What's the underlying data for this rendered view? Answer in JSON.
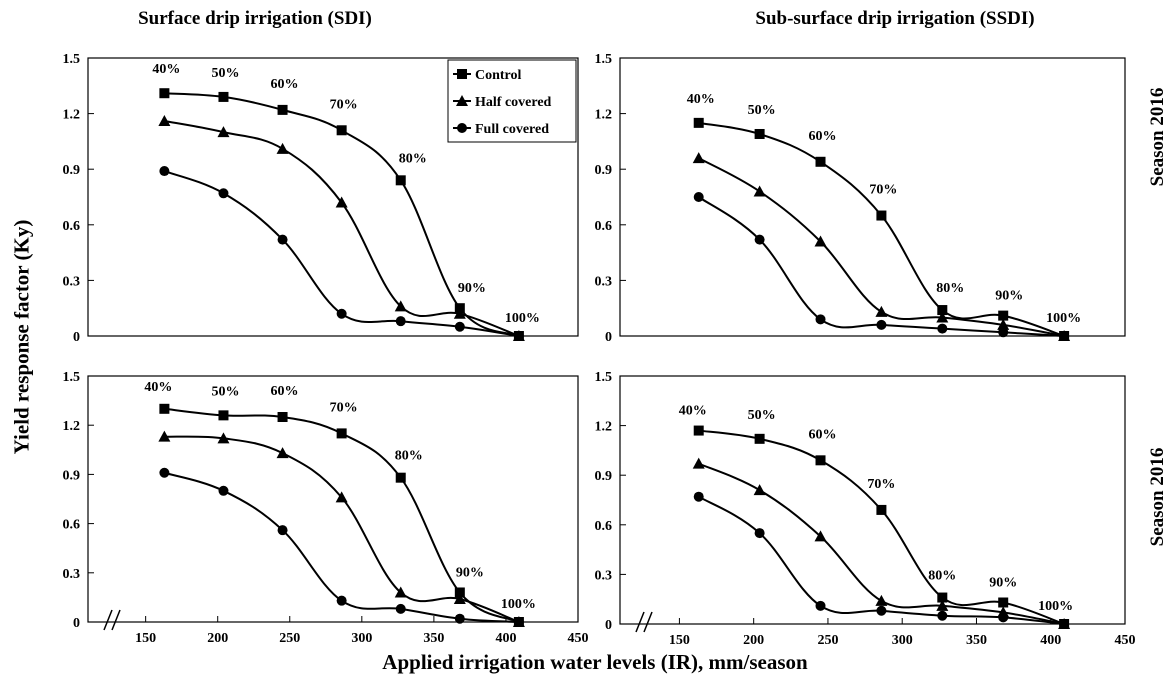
{
  "titles": {
    "sdi": "Surface drip irrigation (SDI)",
    "ssdi": "Sub-surface drip irrigation (SSDI)"
  },
  "ylabel": "Yield response factor (Ky)",
  "xlabel": "Applied irrigation water levels (IR), mm/season",
  "season_labels": [
    "Season 2016",
    "Season 2016"
  ],
  "legend": [
    "Control",
    "Half covered",
    "Full covered"
  ],
  "chart_data": [
    {
      "type": "line",
      "panel": "SDI top",
      "ylim": [
        0,
        1.5
      ],
      "yticks": [
        "1.5",
        "1.2",
        "0.9",
        "0.6",
        "0.3",
        "0"
      ],
      "x": [
        163,
        204,
        245,
        286,
        327,
        368,
        409
      ],
      "point_labels": [
        "40%",
        "50%",
        "60%",
        "70%",
        "80%",
        "90%",
        "100%"
      ],
      "series": [
        {
          "name": "Control",
          "marker": "square",
          "values": [
            1.31,
            1.29,
            1.22,
            1.11,
            0.84,
            0.15,
            0
          ]
        },
        {
          "name": "Half covered",
          "marker": "triangle",
          "values": [
            1.16,
            1.1,
            1.01,
            0.72,
            0.16,
            0.12,
            0
          ]
        },
        {
          "name": "Full covered",
          "marker": "circle",
          "values": [
            0.89,
            0.77,
            0.52,
            0.12,
            0.08,
            0.05,
            0
          ]
        }
      ]
    },
    {
      "type": "line",
      "panel": "SSDI top",
      "ylim": [
        0,
        1.5
      ],
      "yticks": [
        "1.5",
        "1.2",
        "0.9",
        "0.6",
        "0.3",
        "0"
      ],
      "x": [
        163,
        204,
        245,
        286,
        327,
        368,
        409
      ],
      "point_labels": [
        "40%",
        "50%",
        "60%",
        "70%",
        "80%",
        "90%",
        "100%"
      ],
      "series": [
        {
          "name": "Control",
          "marker": "square",
          "values": [
            1.15,
            1.09,
            0.94,
            0.65,
            0.14,
            0.11,
            0
          ]
        },
        {
          "name": "Half covered",
          "marker": "triangle",
          "values": [
            0.96,
            0.78,
            0.51,
            0.13,
            0.1,
            0.06,
            0
          ]
        },
        {
          "name": "Full covered",
          "marker": "circle",
          "values": [
            0.75,
            0.52,
            0.09,
            0.06,
            0.04,
            0.02,
            0
          ]
        }
      ]
    },
    {
      "type": "line",
      "panel": "SDI bottom",
      "ylim": [
        0,
        1.5
      ],
      "yticks": [
        "1.5",
        "1.2",
        "0.9",
        "0.6",
        "0.3",
        "0"
      ],
      "xticks": [
        "150",
        "200",
        "250",
        "300",
        "350",
        "400",
        "450"
      ],
      "x": [
        163,
        204,
        245,
        286,
        327,
        368,
        409
      ],
      "point_labels": [
        "40%",
        "50%",
        "60%",
        "70%",
        "80%",
        "90%",
        "100%"
      ],
      "series": [
        {
          "name": "Control",
          "marker": "square",
          "values": [
            1.3,
            1.26,
            1.25,
            1.15,
            0.88,
            0.18,
            0
          ]
        },
        {
          "name": "Half covered",
          "marker": "triangle",
          "values": [
            1.13,
            1.12,
            1.03,
            0.76,
            0.18,
            0.14,
            0
          ]
        },
        {
          "name": "Full covered",
          "marker": "circle",
          "values": [
            0.91,
            0.8,
            0.56,
            0.13,
            0.08,
            0.02,
            0
          ]
        }
      ]
    },
    {
      "type": "line",
      "panel": "SSDI bottom",
      "ylim": [
        0,
        1.5
      ],
      "yticks": [
        "1.5",
        "1.2",
        "0.9",
        "0.6",
        "0.3",
        "0"
      ],
      "xticks": [
        "150",
        "200",
        "250",
        "300",
        "350",
        "400",
        "450"
      ],
      "x": [
        163,
        204,
        245,
        286,
        327,
        368,
        409
      ],
      "point_labels": [
        "40%",
        "50%",
        "60%",
        "70%",
        "80%",
        "90%",
        "100%"
      ],
      "series": [
        {
          "name": "Control",
          "marker": "square",
          "values": [
            1.17,
            1.12,
            0.99,
            0.69,
            0.16,
            0.13,
            0
          ]
        },
        {
          "name": "Half covered",
          "marker": "triangle",
          "values": [
            0.97,
            0.81,
            0.53,
            0.14,
            0.11,
            0.07,
            0
          ]
        },
        {
          "name": "Full covered",
          "marker": "circle",
          "values": [
            0.77,
            0.55,
            0.11,
            0.08,
            0.05,
            0.04,
            0
          ]
        }
      ]
    }
  ]
}
